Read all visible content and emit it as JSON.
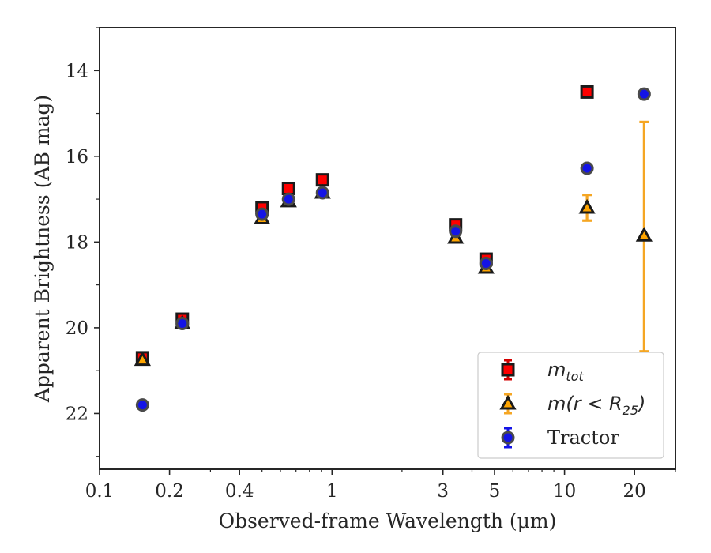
{
  "chart_data": {
    "type": "scatter",
    "title": "",
    "xlabel": "Observed-frame Wavelength (μm)",
    "ylabel": "Apparent Brightness (AB mag)",
    "xscale": "log",
    "xlim": [
      0.1,
      30
    ],
    "ylim": [
      23.3,
      13.0
    ],
    "y_inverted": true,
    "grid": false,
    "legend_position": "lower-right",
    "x_tick_labels": [
      "0.1",
      "0.2",
      "0.4",
      "1",
      "3",
      "5",
      "10",
      "20"
    ],
    "x_tick_values": [
      0.1,
      0.2,
      0.4,
      1,
      3,
      5,
      10,
      20
    ],
    "y_tick_labels": [
      "14",
      "16",
      "18",
      "20",
      "22"
    ],
    "y_tick_values": [
      14,
      16,
      18,
      20,
      22
    ],
    "series": [
      {
        "name": "m_tot",
        "legend_main": "m",
        "legend_sub": "tot",
        "marker": "square",
        "color": "#ff0000",
        "edge_color": "#1a1a1a",
        "error_color": "#d40000",
        "points": [
          {
            "x": 0.153,
            "y": 20.7
          },
          {
            "x": 0.227,
            "y": 19.8
          },
          {
            "x": 0.5,
            "y": 17.2
          },
          {
            "x": 0.65,
            "y": 16.75
          },
          {
            "x": 0.91,
            "y": 16.55
          },
          {
            "x": 3.4,
            "y": 17.6
          },
          {
            "x": 4.6,
            "y": 18.4
          },
          {
            "x": 12.5,
            "y": 14.5
          }
        ]
      },
      {
        "name": "m(r < R_25)",
        "legend_main": "m(r < R",
        "legend_sub": "25",
        "legend_close": ")",
        "marker": "triangle",
        "color": "#ffa500",
        "edge_color": "#1a1a1a",
        "error_color": "#f5a623",
        "points": [
          {
            "x": 0.153,
            "y": 20.75
          },
          {
            "x": 0.227,
            "y": 19.9
          },
          {
            "x": 0.5,
            "y": 17.45
          },
          {
            "x": 0.65,
            "y": 17.05
          },
          {
            "x": 0.91,
            "y": 16.85
          },
          {
            "x": 3.4,
            "y": 17.9
          },
          {
            "x": 4.6,
            "y": 18.6
          },
          {
            "x": 12.5,
            "y": 17.2,
            "yerr_low": 16.9,
            "yerr_high": 17.5
          },
          {
            "x": 22.0,
            "y": 17.85,
            "yerr_low": 15.2,
            "yerr_high": 20.55
          }
        ]
      },
      {
        "name": "Tractor",
        "legend_main": "Tractor",
        "marker": "circle",
        "color": "#1414e6",
        "edge_color": "#4a4a4a",
        "error_color": "#1414e6",
        "points": [
          {
            "x": 0.153,
            "y": 21.8
          },
          {
            "x": 0.227,
            "y": 19.9
          },
          {
            "x": 0.5,
            "y": 17.35
          },
          {
            "x": 0.65,
            "y": 17.0
          },
          {
            "x": 0.91,
            "y": 16.85
          },
          {
            "x": 3.4,
            "y": 17.75
          },
          {
            "x": 4.6,
            "y": 18.5
          },
          {
            "x": 12.5,
            "y": 16.28
          },
          {
            "x": 22.0,
            "y": 14.55
          }
        ]
      }
    ]
  }
}
